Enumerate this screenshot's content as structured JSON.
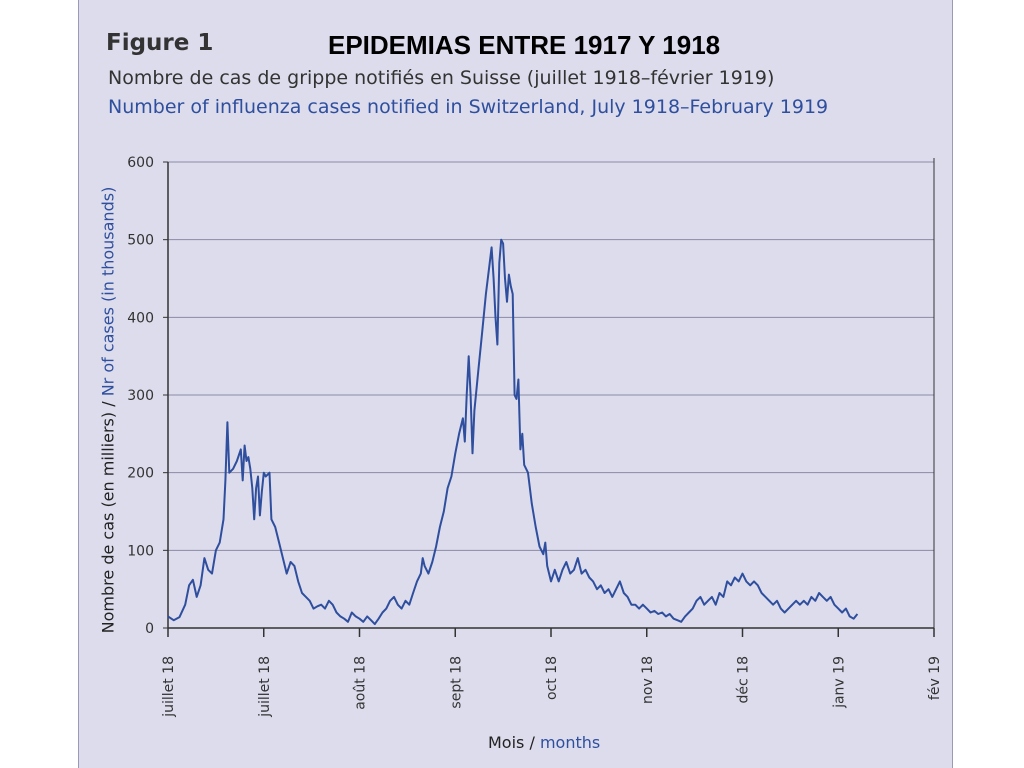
{
  "figure_label": "Figure 1",
  "overlay_title": "EPIDEMIAS ENTRE 1917 Y 1918",
  "subtitle_fr": "Nombre de cas de grippe notifiés en Suisse (juillet 1918–février 1919)",
  "subtitle_en": "Number of influenza cases notified in Switzerland, July 1918–February 1919",
  "ylabel_fr": "Nombre de cas (en milliers) / ",
  "ylabel_en": "Nr of cases (in thousands)",
  "xlabel_fr": "Mois / ",
  "xlabel_en": "months",
  "colors": {
    "line": "#2f4f9e",
    "panel": "#dcdcec",
    "grid": "#8a8aa6",
    "axis": "#333333"
  },
  "chart_data": {
    "type": "line",
    "title": "Nombre de cas de grippe notifiés en Suisse (juillet 1918–février 1919)",
    "xlabel": "Mois / months",
    "ylabel": "Nombre de cas (en milliers) / Nr of cases (in thousands)",
    "ylim": [
      0,
      600
    ],
    "yticks": [
      0,
      100,
      200,
      300,
      400,
      500,
      600
    ],
    "grid": true,
    "xticks": [
      {
        "label": "juillet 18",
        "pos": 0
      },
      {
        "label": "juillet 18",
        "pos": 1
      },
      {
        "label": "août 18",
        "pos": 2
      },
      {
        "label": "sept 18",
        "pos": 3
      },
      {
        "label": "oct 18",
        "pos": 4
      },
      {
        "label": "nov 18",
        "pos": 5
      },
      {
        "label": "déc 18",
        "pos": 6
      },
      {
        "label": "janv 19",
        "pos": 7
      },
      {
        "label": "fév 19",
        "pos": 8
      }
    ],
    "series": [
      {
        "values": [
          [
            0.0,
            15
          ],
          [
            0.06,
            10
          ],
          [
            0.12,
            14
          ],
          [
            0.18,
            30
          ],
          [
            0.22,
            55
          ],
          [
            0.26,
            62
          ],
          [
            0.3,
            40
          ],
          [
            0.34,
            55
          ],
          [
            0.38,
            90
          ],
          [
            0.42,
            75
          ],
          [
            0.46,
            70
          ],
          [
            0.5,
            100
          ],
          [
            0.54,
            110
          ],
          [
            0.58,
            140
          ],
          [
            0.6,
            190
          ],
          [
            0.62,
            265
          ],
          [
            0.64,
            200
          ],
          [
            0.68,
            205
          ],
          [
            0.72,
            215
          ],
          [
            0.76,
            230
          ],
          [
            0.78,
            190
          ],
          [
            0.8,
            235
          ],
          [
            0.82,
            215
          ],
          [
            0.84,
            220
          ],
          [
            0.86,
            205
          ],
          [
            0.88,
            180
          ],
          [
            0.9,
            140
          ],
          [
            0.92,
            180
          ],
          [
            0.94,
            195
          ],
          [
            0.96,
            145
          ],
          [
            0.98,
            175
          ],
          [
            1.0,
            200
          ],
          [
            1.02,
            195
          ],
          [
            1.06,
            200
          ],
          [
            1.08,
            140
          ],
          [
            1.12,
            130
          ],
          [
            1.16,
            110
          ],
          [
            1.2,
            90
          ],
          [
            1.24,
            70
          ],
          [
            1.28,
            85
          ],
          [
            1.32,
            80
          ],
          [
            1.36,
            60
          ],
          [
            1.4,
            45
          ],
          [
            1.44,
            40
          ],
          [
            1.48,
            35
          ],
          [
            1.52,
            25
          ],
          [
            1.56,
            28
          ],
          [
            1.6,
            30
          ],
          [
            1.64,
            25
          ],
          [
            1.68,
            35
          ],
          [
            1.72,
            30
          ],
          [
            1.76,
            20
          ],
          [
            1.8,
            15
          ],
          [
            1.84,
            12
          ],
          [
            1.88,
            8
          ],
          [
            1.92,
            20
          ],
          [
            1.96,
            15
          ],
          [
            2.0,
            12
          ],
          [
            2.04,
            8
          ],
          [
            2.08,
            15
          ],
          [
            2.12,
            10
          ],
          [
            2.16,
            5
          ],
          [
            2.2,
            12
          ],
          [
            2.24,
            20
          ],
          [
            2.28,
            25
          ],
          [
            2.32,
            35
          ],
          [
            2.36,
            40
          ],
          [
            2.4,
            30
          ],
          [
            2.44,
            25
          ],
          [
            2.48,
            35
          ],
          [
            2.52,
            30
          ],
          [
            2.56,
            45
          ],
          [
            2.6,
            60
          ],
          [
            2.64,
            70
          ],
          [
            2.66,
            90
          ],
          [
            2.68,
            80
          ],
          [
            2.72,
            70
          ],
          [
            2.76,
            85
          ],
          [
            2.8,
            105
          ],
          [
            2.84,
            130
          ],
          [
            2.88,
            150
          ],
          [
            2.92,
            180
          ],
          [
            2.96,
            195
          ],
          [
            3.0,
            225
          ],
          [
            3.04,
            250
          ],
          [
            3.08,
            270
          ],
          [
            3.1,
            240
          ],
          [
            3.12,
            300
          ],
          [
            3.14,
            350
          ],
          [
            3.16,
            300
          ],
          [
            3.18,
            225
          ],
          [
            3.2,
            280
          ],
          [
            3.24,
            330
          ],
          [
            3.28,
            380
          ],
          [
            3.32,
            430
          ],
          [
            3.36,
            470
          ],
          [
            3.38,
            490
          ],
          [
            3.4,
            450
          ],
          [
            3.42,
            400
          ],
          [
            3.44,
            365
          ],
          [
            3.46,
            470
          ],
          [
            3.48,
            500
          ],
          [
            3.5,
            495
          ],
          [
            3.52,
            450
          ],
          [
            3.54,
            420
          ],
          [
            3.56,
            455
          ],
          [
            3.58,
            440
          ],
          [
            3.6,
            430
          ],
          [
            3.62,
            300
          ],
          [
            3.64,
            295
          ],
          [
            3.66,
            320
          ],
          [
            3.68,
            230
          ],
          [
            3.7,
            250
          ],
          [
            3.72,
            210
          ],
          [
            3.76,
            200
          ],
          [
            3.8,
            160
          ],
          [
            3.84,
            130
          ],
          [
            3.88,
            105
          ],
          [
            3.92,
            95
          ],
          [
            3.94,
            110
          ],
          [
            3.96,
            80
          ],
          [
            4.0,
            60
          ],
          [
            4.04,
            75
          ],
          [
            4.08,
            60
          ],
          [
            4.12,
            75
          ],
          [
            4.16,
            85
          ],
          [
            4.2,
            70
          ],
          [
            4.24,
            75
          ],
          [
            4.28,
            90
          ],
          [
            4.32,
            70
          ],
          [
            4.36,
            75
          ],
          [
            4.4,
            65
          ],
          [
            4.44,
            60
          ],
          [
            4.48,
            50
          ],
          [
            4.52,
            55
          ],
          [
            4.56,
            45
          ],
          [
            4.6,
            50
          ],
          [
            4.64,
            40
          ],
          [
            4.68,
            50
          ],
          [
            4.72,
            60
          ],
          [
            4.76,
            45
          ],
          [
            4.8,
            40
          ],
          [
            4.84,
            30
          ],
          [
            4.88,
            30
          ],
          [
            4.92,
            25
          ],
          [
            4.96,
            30
          ],
          [
            5.0,
            25
          ],
          [
            5.04,
            20
          ],
          [
            5.08,
            22
          ],
          [
            5.12,
            18
          ],
          [
            5.16,
            20
          ],
          [
            5.2,
            15
          ],
          [
            5.24,
            18
          ],
          [
            5.28,
            12
          ],
          [
            5.32,
            10
          ],
          [
            5.36,
            8
          ],
          [
            5.4,
            15
          ],
          [
            5.44,
            20
          ],
          [
            5.48,
            25
          ],
          [
            5.52,
            35
          ],
          [
            5.56,
            40
          ],
          [
            5.6,
            30
          ],
          [
            5.64,
            35
          ],
          [
            5.68,
            40
          ],
          [
            5.72,
            30
          ],
          [
            5.76,
            45
          ],
          [
            5.8,
            40
          ],
          [
            5.84,
            60
          ],
          [
            5.88,
            55
          ],
          [
            5.92,
            65
          ],
          [
            5.96,
            60
          ],
          [
            6.0,
            70
          ],
          [
            6.04,
            60
          ],
          [
            6.08,
            55
          ],
          [
            6.12,
            60
          ],
          [
            6.16,
            55
          ],
          [
            6.2,
            45
          ],
          [
            6.24,
            40
          ],
          [
            6.28,
            35
          ],
          [
            6.32,
            30
          ],
          [
            6.36,
            35
          ],
          [
            6.4,
            25
          ],
          [
            6.44,
            20
          ],
          [
            6.48,
            25
          ],
          [
            6.52,
            30
          ],
          [
            6.56,
            35
          ],
          [
            6.6,
            30
          ],
          [
            6.64,
            35
          ],
          [
            6.68,
            30
          ],
          [
            6.72,
            40
          ],
          [
            6.76,
            35
          ],
          [
            6.8,
            45
          ],
          [
            6.84,
            40
          ],
          [
            6.88,
            35
          ],
          [
            6.92,
            40
          ],
          [
            6.96,
            30
          ],
          [
            7.0,
            25
          ],
          [
            7.04,
            20
          ],
          [
            7.08,
            25
          ],
          [
            7.12,
            15
          ],
          [
            7.16,
            12
          ],
          [
            7.2,
            18
          ]
        ]
      }
    ]
  }
}
